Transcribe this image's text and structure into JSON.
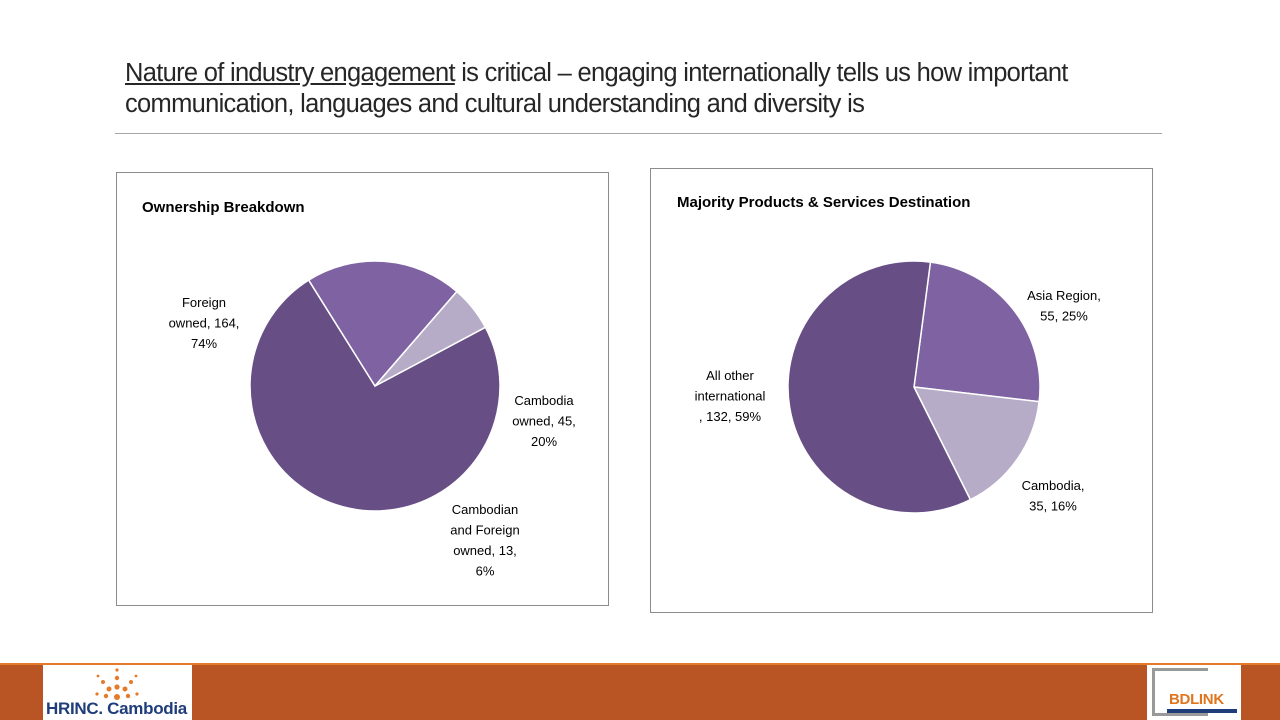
{
  "slide": {
    "title_underlined": "Nature of industry engagement",
    "title_rest": " is critical – engaging internationally tells us how important communication, languages and cultural understanding and diversity is"
  },
  "chart_data": [
    {
      "type": "pie",
      "title": "Ownership Breakdown",
      "categories": [
        "Foreign owned",
        "Cambodia owned",
        "Cambodian and Foreign owned"
      ],
      "values": [
        164,
        45,
        13
      ],
      "percentages": [
        74,
        20,
        6
      ],
      "colors": [
        "#674f86",
        "#7e62a1",
        "#b7acc8"
      ],
      "data_labels": [
        [
          "Foreign",
          "owned, 164,",
          "74%"
        ],
        [
          "Cambodia",
          "owned, 45,",
          "20%"
        ],
        [
          "Cambodian",
          "and Foreign",
          "owned, 13,",
          "6%"
        ]
      ]
    },
    {
      "type": "pie",
      "title": "Majority Products & Services Destination",
      "categories": [
        "Asia Region",
        "Cambodia",
        "All other international"
      ],
      "values": [
        55,
        35,
        132
      ],
      "percentages": [
        25,
        16,
        59
      ],
      "colors": [
        "#7e62a1",
        "#b7acc8",
        "#674f86"
      ],
      "data_labels": [
        [
          "Asia Region,",
          "55, 25%"
        ],
        [
          "Cambodia,",
          "35, 16%"
        ],
        [
          "All other",
          "international",
          ", 132, 59%"
        ]
      ]
    }
  ],
  "footer": {
    "left_logo_text": "HRINC. Cambodia",
    "right_logo_text": "BDLINK"
  }
}
